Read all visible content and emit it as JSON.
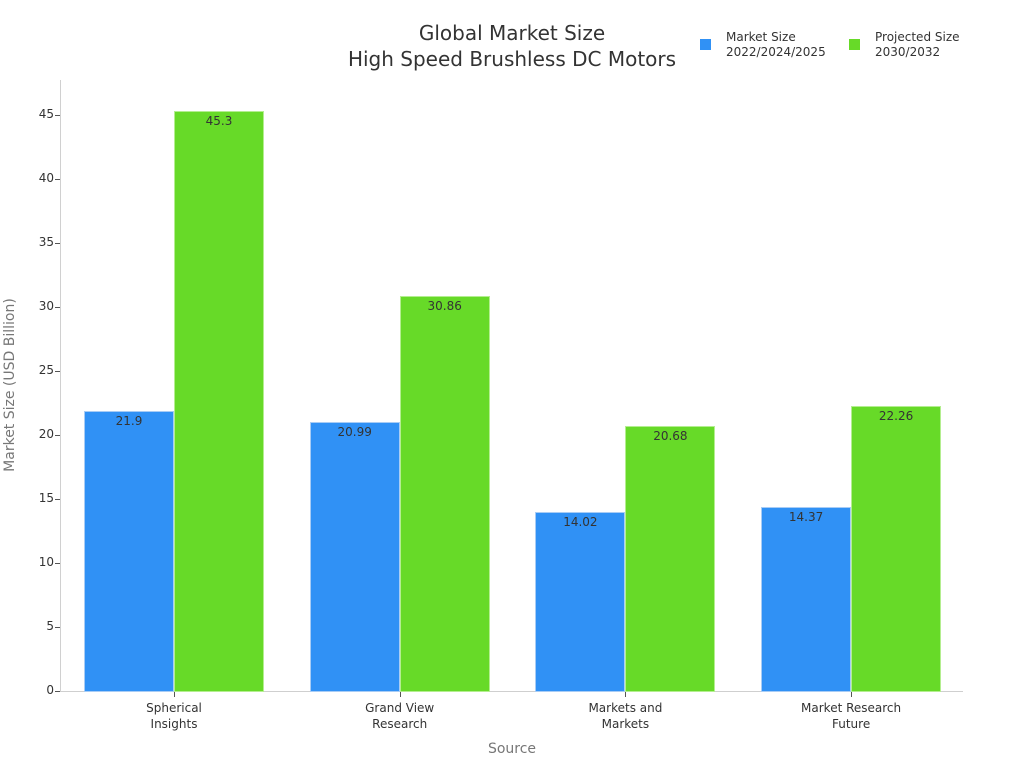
{
  "chart_data": {
    "type": "bar",
    "title": "Global Market Size",
    "subtitle": "High Speed Brushless DC Motors",
    "title_lines": [
      "Global Market Size",
      "High Speed Brushless DC Motors"
    ],
    "xlabel": "Source",
    "ylabel": "Market Size (USD Billion)",
    "categories": [
      "Spherical Insights",
      "Grand View Research",
      "Markets and Markets",
      "Market Research Future"
    ],
    "category_labels": [
      "Spherical\nInsights",
      "Grand View\nResearch",
      "Markets and\nMarkets",
      "Market Research\nFuture"
    ],
    "series": [
      {
        "name": "Market Size 2022/2024/2025",
        "legend_label": "Market Size\n2022/2024/2025",
        "color": "#3091f5",
        "values": [
          21.9,
          20.99,
          14.02,
          14.37
        ],
        "value_labels": [
          "21.9",
          "20.99",
          "14.02",
          "14.37"
        ]
      },
      {
        "name": "Projected Size 2030/2032",
        "legend_label": "Projected Size\n2030/2032",
        "color": "#67da28",
        "values": [
          45.3,
          30.86,
          20.68,
          22.26
        ],
        "value_labels": [
          "45.3",
          "30.86",
          "20.68",
          "22.26"
        ]
      }
    ],
    "ylim": [
      0,
      47.5
    ],
    "yticks": [
      0,
      5,
      10,
      15,
      20,
      25,
      30,
      35,
      40,
      45
    ],
    "ytick_labels": [
      "0",
      "5",
      "10",
      "15",
      "20",
      "25",
      "30",
      "35",
      "40",
      "45"
    ],
    "grid": false,
    "legend_position": "top-right",
    "data_labels": true
  }
}
